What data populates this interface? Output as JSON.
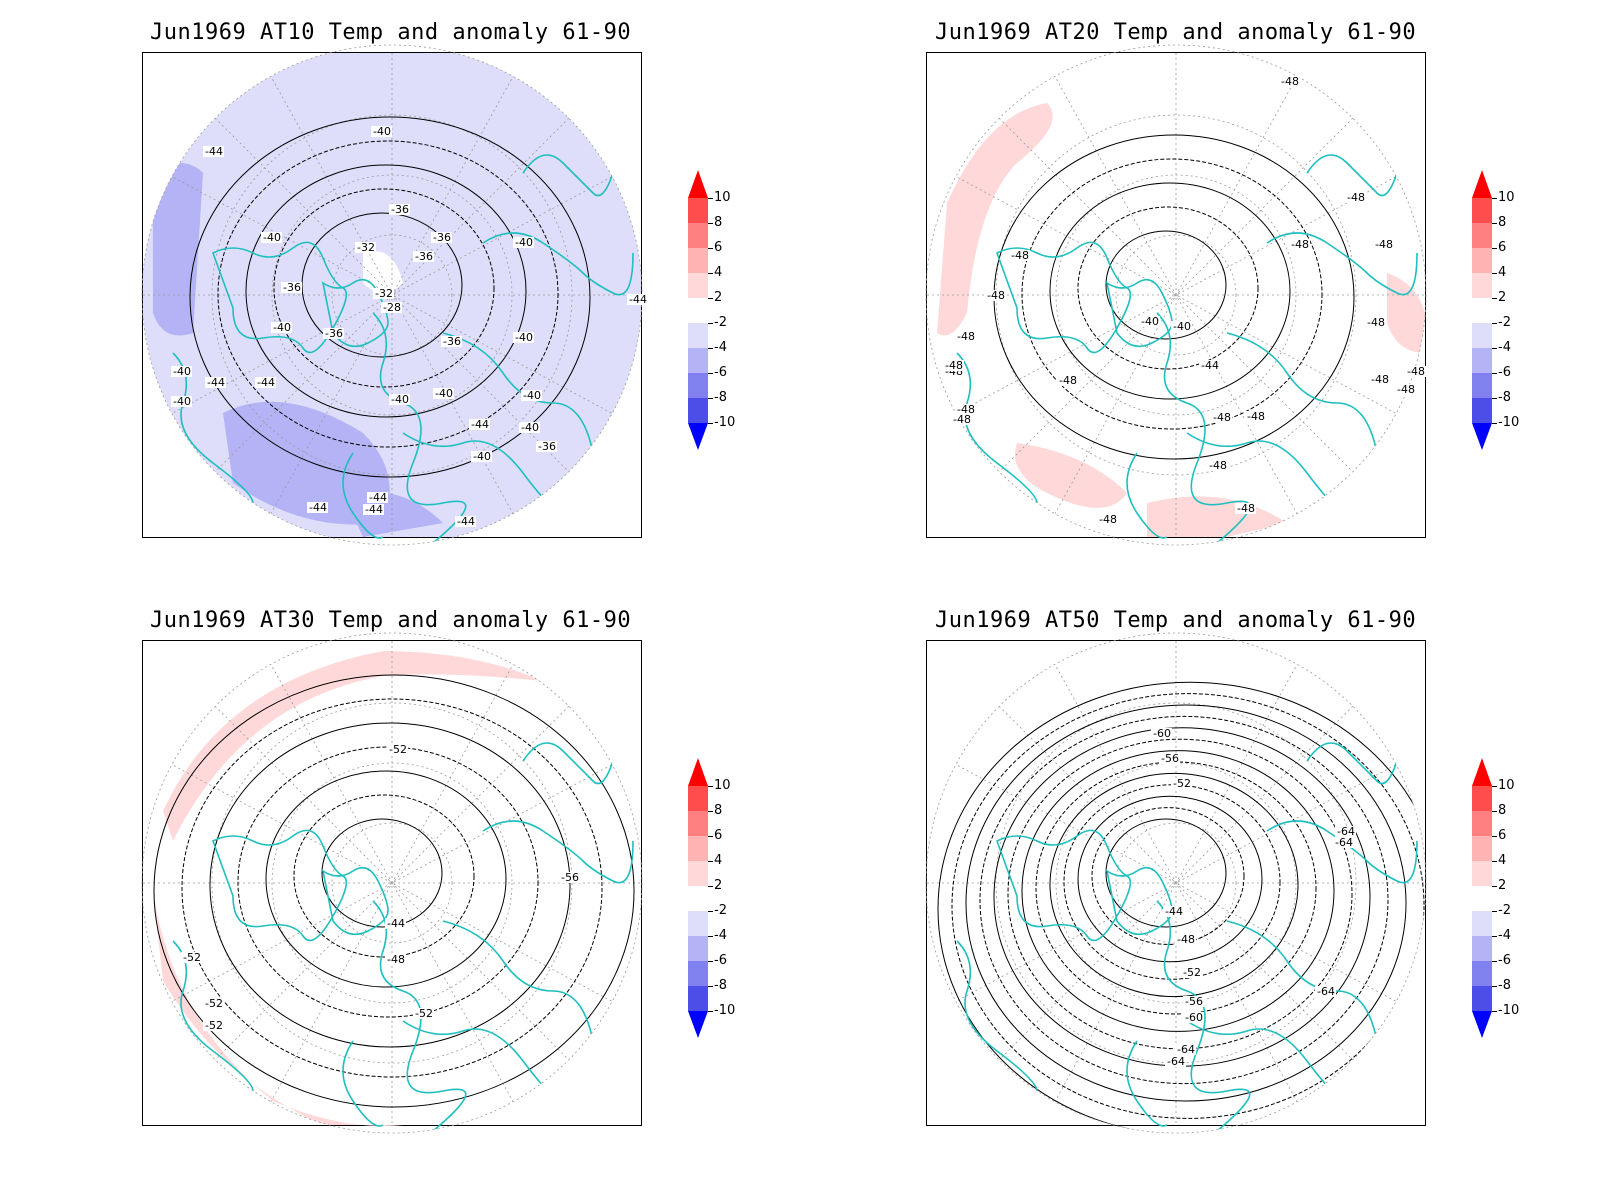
{
  "panels": [
    {
      "title": "Jun1969 AT10 Temp and anomaly 61-90",
      "contour_labels": [
        "-40",
        "-44",
        "-36",
        "-40",
        "-32",
        "-36",
        "-36",
        "-40",
        "-36",
        "-32",
        "-28",
        "-36",
        "-40",
        "-36",
        "-40",
        "-44",
        "-44",
        "-40",
        "-40",
        "-40",
        "-40",
        "-44",
        "-40",
        "-40",
        "-40",
        "-36",
        "-44",
        "-44",
        "-44",
        "-44",
        "-44"
      ],
      "anomaly_sign": "negative"
    },
    {
      "title": "Jun1969 AT20 Temp and anomaly 61-90",
      "contour_labels": [
        "-48",
        "-48",
        "-48",
        "-48",
        "-48",
        "-48",
        "-48",
        "-48",
        "-40",
        "-40",
        "-44",
        "-48",
        "-48",
        "-48",
        "-48",
        "-48",
        "-48",
        "-48",
        "-48",
        "-48",
        "-48",
        "-48",
        "-48",
        "-48"
      ],
      "anomaly_sign": "positive"
    },
    {
      "title": "Jun1969 AT30 Temp and anomaly 61-90",
      "contour_labels": [
        "-52",
        "-56",
        "-44",
        "-48",
        "-52",
        "-52",
        "-52",
        "-52"
      ],
      "anomaly_sign": "positive"
    },
    {
      "title": "Jun1969 AT50 Temp and anomaly 61-90",
      "contour_labels": [
        "-60",
        "-56",
        "-52",
        "-64",
        "-64",
        "-44",
        "-48",
        "-52",
        "-56",
        "-60",
        "-64",
        "-64",
        "-64"
      ],
      "anomaly_sign": "neutral"
    }
  ],
  "colorbar": {
    "labels": [
      "10",
      "8",
      "6",
      "4",
      "2",
      "-2",
      "-4",
      "-6",
      "-8",
      "-10"
    ],
    "colors": [
      "#ff0000",
      "#ff4d4d",
      "#ff8080",
      "#ffb3b3",
      "#ffd9d9",
      "#ffffff",
      "#dedefa",
      "#b3b3f5",
      "#8080ee",
      "#4d4de8",
      "#0000ff"
    ]
  },
  "colors": {
    "coastline": "#1ebfbf",
    "contour": "#000000",
    "grid": "#9a9a9a"
  }
}
